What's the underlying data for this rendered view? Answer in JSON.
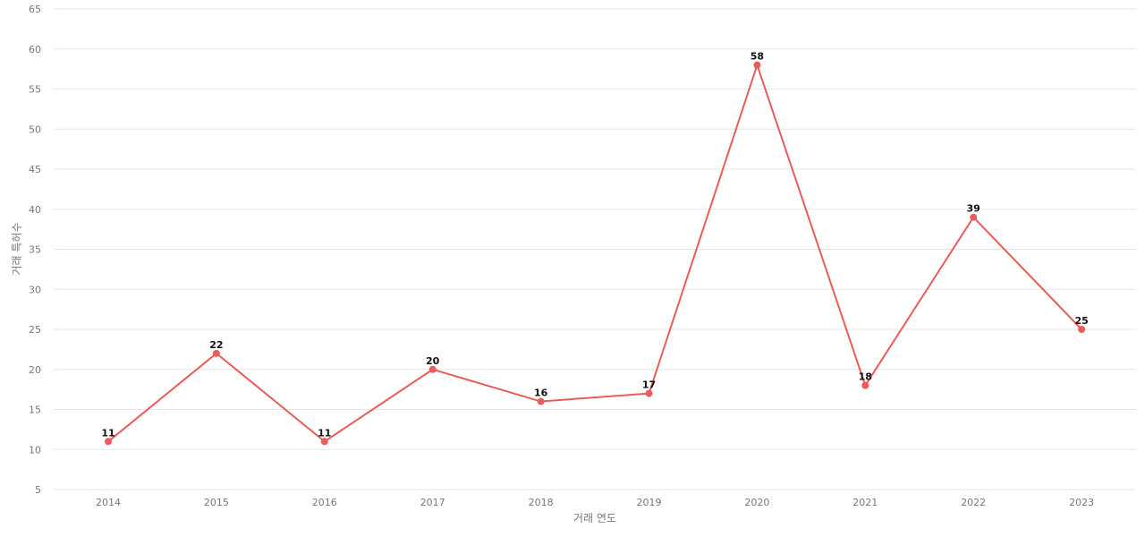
{
  "chart_data": {
    "type": "line",
    "x": [
      "2014",
      "2015",
      "2016",
      "2017",
      "2018",
      "2019",
      "2020",
      "2021",
      "2022",
      "2023"
    ],
    "series": [
      {
        "values": [
          11,
          22,
          11,
          20,
          16,
          17,
          58,
          18,
          39,
          25
        ]
      }
    ],
    "title": "",
    "xlabel": "거래 연도",
    "ylabel": "거래 특허수",
    "ylim": [
      5,
      65
    ],
    "yticks": [
      5,
      10,
      15,
      20,
      25,
      30,
      35,
      40,
      45,
      50,
      55,
      60,
      65
    ],
    "grid": true,
    "data_labels": true,
    "colors": {
      "line": "#ea5b5b",
      "grid": "#e6e6e6"
    }
  }
}
